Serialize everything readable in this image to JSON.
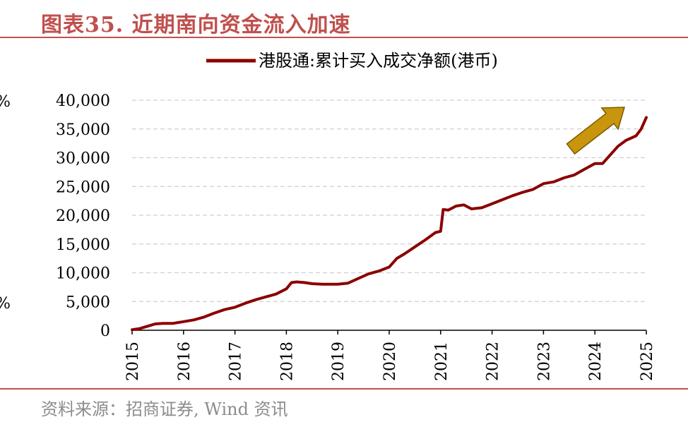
{
  "header": {
    "title": "图表35. 近期南向资金流入加速"
  },
  "footer": {
    "source": "资料来源：招商证券, Wind 资讯"
  },
  "colors": {
    "accent": "#c0504d",
    "series": "#8b0000",
    "arrow": "#c9950c",
    "grid": "#cfcfcf"
  },
  "chart_data": {
    "type": "line",
    "title": "",
    "xlabel": "",
    "ylabel": "",
    "ylim": [
      0,
      40000
    ],
    "xlim": [
      2015,
      2025
    ],
    "y_ticks": [
      "0",
      "5,000",
      "10,000",
      "15,000",
      "20,000",
      "25,000",
      "30,000",
      "35,000",
      "40,000"
    ],
    "x_ticks": [
      "2015",
      "2016",
      "2017",
      "2018",
      "2019",
      "2020",
      "2021",
      "2022",
      "2023",
      "2024",
      "2025"
    ],
    "grid": "horizontal dashed",
    "legend_position": "top",
    "annotation": "upward arrow (top-right)",
    "series": [
      {
        "name": "港股通:累计买入成交净额(港币)",
        "x": [
          2015.0,
          2015.15,
          2015.3,
          2015.45,
          2015.6,
          2015.8,
          2016.0,
          2016.2,
          2016.4,
          2016.6,
          2016.8,
          2017.0,
          2017.2,
          2017.4,
          2017.6,
          2017.8,
          2018.0,
          2018.1,
          2018.2,
          2018.35,
          2018.5,
          2018.7,
          2018.9,
          2019.0,
          2019.2,
          2019.4,
          2019.6,
          2019.8,
          2020.0,
          2020.15,
          2020.3,
          2020.5,
          2020.7,
          2020.9,
          2021.0,
          2021.05,
          2021.15,
          2021.3,
          2021.45,
          2021.6,
          2021.8,
          2022.0,
          2022.2,
          2022.4,
          2022.6,
          2022.8,
          2023.0,
          2023.2,
          2023.4,
          2023.6,
          2023.8,
          2024.0,
          2024.15,
          2024.3,
          2024.45,
          2024.6,
          2024.8,
          2024.9,
          2025.0
        ],
        "values": [
          100,
          300,
          700,
          1100,
          1200,
          1200,
          1500,
          1800,
          2300,
          3000,
          3600,
          4000,
          4700,
          5300,
          5800,
          6300,
          7200,
          8300,
          8400,
          8300,
          8100,
          8000,
          8000,
          8000,
          8200,
          9000,
          9800,
          10300,
          11000,
          12500,
          13300,
          14500,
          15700,
          17000,
          17200,
          21000,
          20900,
          21600,
          21800,
          21100,
          21300,
          22000,
          22700,
          23400,
          24000,
          24500,
          25500,
          25800,
          26500,
          27000,
          28000,
          29000,
          29000,
          30500,
          32000,
          33000,
          33800,
          35000,
          37000
        ]
      }
    ]
  }
}
